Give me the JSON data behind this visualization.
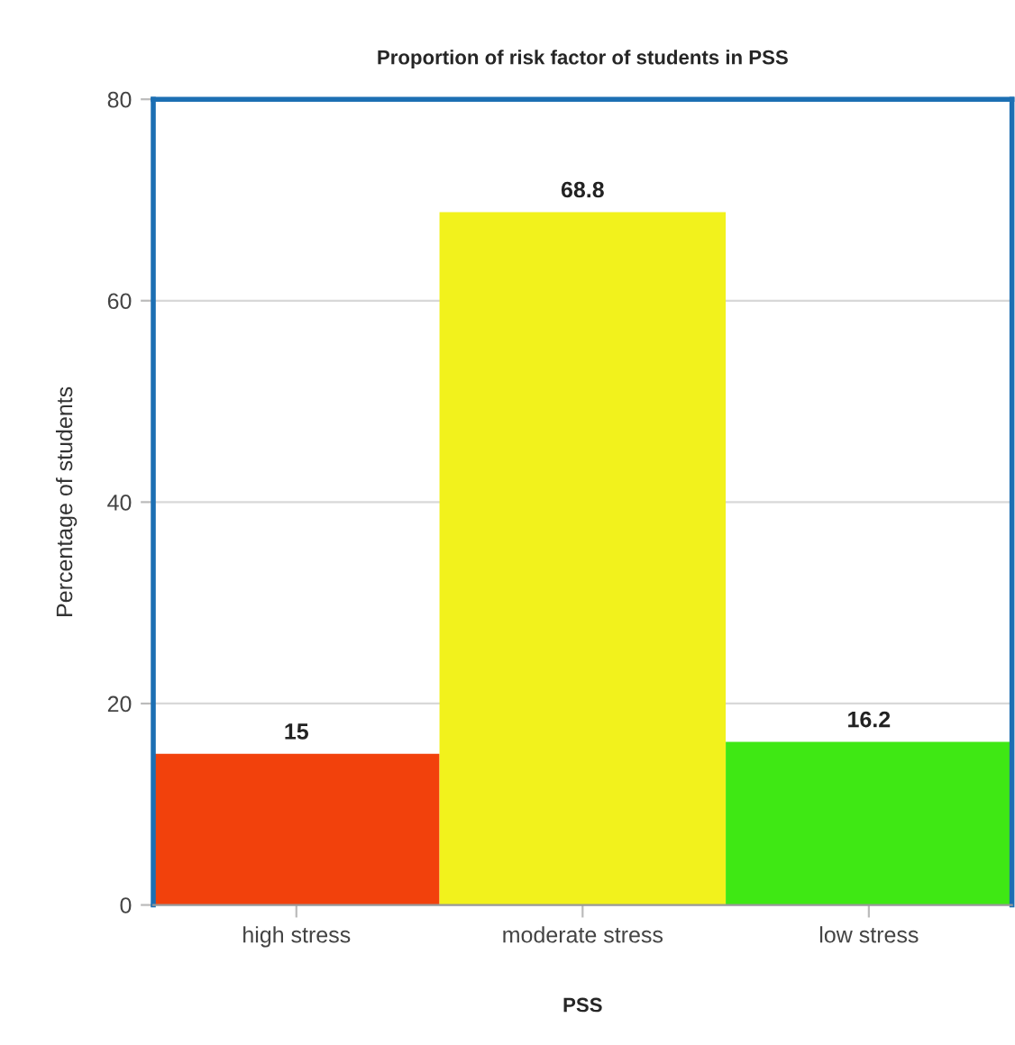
{
  "chart_data": {
    "type": "bar",
    "title": "Proportion of risk factor of students in PSS",
    "xlabel": "PSS",
    "ylabel": "Percentage of students",
    "categories": [
      "high stress",
      "moderate stress",
      "low stress"
    ],
    "values": [
      15,
      68.8,
      16.2
    ],
    "colors": [
      "#f2410c",
      "#f2f21c",
      "#3fe814"
    ],
    "ylim": [
      0,
      80
    ],
    "yticks": [
      0,
      20,
      40,
      60,
      80
    ],
    "grid": "y",
    "data_labels": true,
    "legend": false
  }
}
